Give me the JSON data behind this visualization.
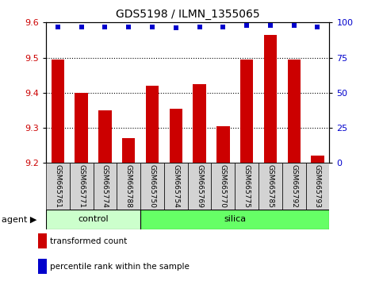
{
  "title": "GDS5198 / ILMN_1355065",
  "samples": [
    "GSM665761",
    "GSM665771",
    "GSM665774",
    "GSM665788",
    "GSM665750",
    "GSM665754",
    "GSM665769",
    "GSM665770",
    "GSM665775",
    "GSM665785",
    "GSM665792",
    "GSM665793"
  ],
  "transformed_count": [
    9.495,
    9.4,
    9.35,
    9.27,
    9.42,
    9.355,
    9.425,
    9.305,
    9.495,
    9.565,
    9.495,
    9.22
  ],
  "percentile_rank_values": [
    97,
    97,
    97,
    97,
    97,
    96,
    97,
    97,
    98,
    98,
    98,
    97
  ],
  "ylim_left": [
    9.2,
    9.6
  ],
  "ylim_right": [
    0,
    100
  ],
  "yticks_left": [
    9.2,
    9.3,
    9.4,
    9.5,
    9.6
  ],
  "yticks_right": [
    0,
    25,
    50,
    75,
    100
  ],
  "control_count": 4,
  "control_label": "control",
  "silica_label": "silica",
  "agent_label": "agent",
  "legend_transformed": "transformed count",
  "legend_percentile": "percentile rank within the sample",
  "bar_color": "#cc0000",
  "dot_color": "#0000cc",
  "control_bg": "#ccffcc",
  "silica_bg": "#66ff66",
  "tick_label_bg": "#d3d3d3",
  "bar_width": 0.55
}
